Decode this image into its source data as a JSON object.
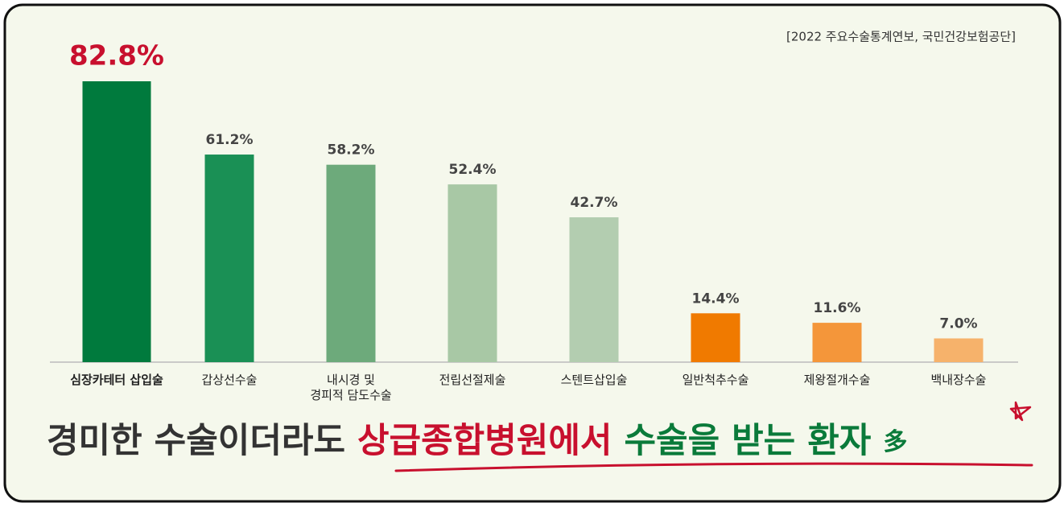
{
  "chart_data": {
    "type": "bar",
    "source": "[2022 주요수술통계연보, 국민건강보험공단]",
    "categories": [
      "심장카테터 삽입술",
      "갑상선수술",
      "내시경 및\n경피적 담도수술",
      "전립선절제술",
      "스텐트삽입술",
      "일반척추수술",
      "제왕절개수술",
      "백내장수술"
    ],
    "values": [
      82.8,
      61.2,
      58.2,
      52.4,
      42.7,
      14.4,
      11.6,
      7.0
    ],
    "value_labels": [
      "82.8%",
      "61.2%",
      "58.2%",
      "52.4%",
      "42.7%",
      "14.4%",
      "11.6%",
      "7.0%"
    ],
    "colors": [
      "#007a3d",
      "#1a9055",
      "#6daa7b",
      "#a8c8a5",
      "#b3cdb0",
      "#f07a00",
      "#f4963a",
      "#f6b26b"
    ],
    "headline": [
      {
        "text": "경미한 수술이더라도",
        "color": "#333333"
      },
      {
        "text": "상급종합병원에서",
        "color": "#c8102e"
      },
      {
        "text": "수술을 받는 환자",
        "color": "#0a7a3a"
      },
      {
        "text": "多",
        "color": "#0a7a3a"
      }
    ]
  }
}
